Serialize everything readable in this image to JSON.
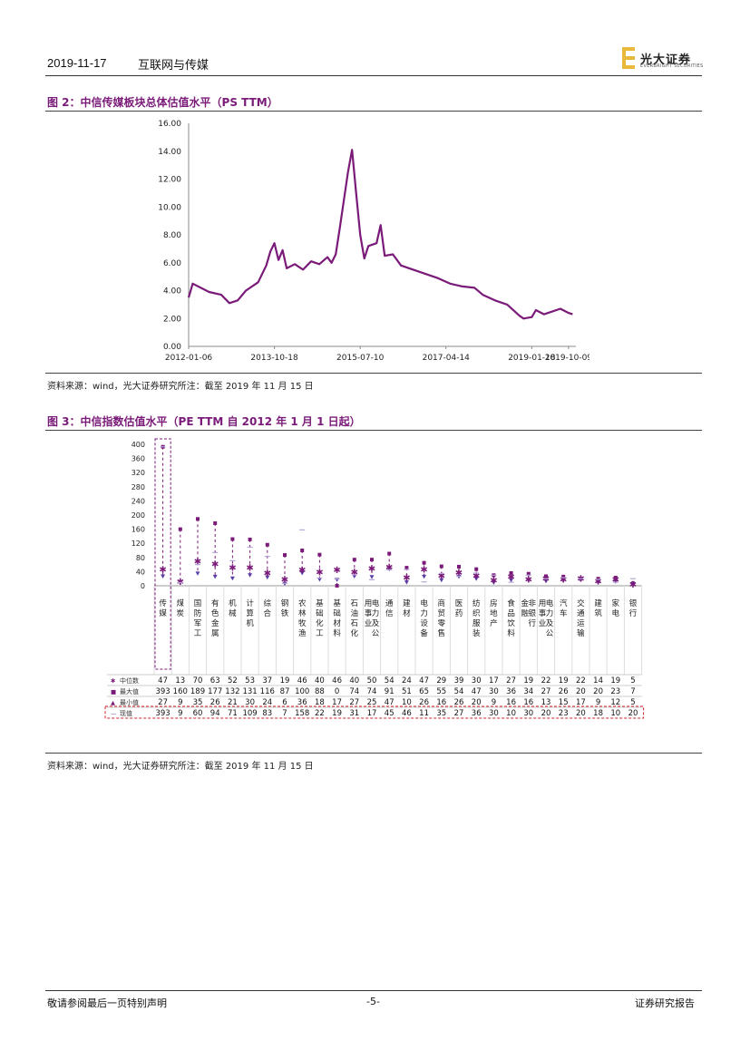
{
  "header": {
    "date": "2019-11-17",
    "category": "互联网与传媒",
    "brand": "光大证券",
    "brand_en": "EVERBRIGHT SECURITIES"
  },
  "figure2": {
    "title": "图 2：中信传媒板块总体估值水平（PS TTM）",
    "source": "资料来源：wind，光大证券研究所注：截至 2019 年 11 月 15 日",
    "chart_data": {
      "type": "line",
      "color": "#7a1a79",
      "ylim": [
        0,
        16
      ],
      "yticks": [
        "0.00",
        "2.00",
        "4.00",
        "6.00",
        "8.00",
        "10.00",
        "12.00",
        "14.00",
        "16.00"
      ],
      "xticks": [
        "2012-01-06",
        "2013-10-18",
        "2015-07-10",
        "2017-04-14",
        "2019-01-18",
        "2019-10-09"
      ],
      "x": [
        "2012-01",
        "2012-02",
        "2012-06",
        "2012-09",
        "2012-11",
        "2013-01",
        "2013-03",
        "2013-06",
        "2013-08",
        "2013-09",
        "2013-10",
        "2013-11",
        "2013-12",
        "2014-01",
        "2014-03",
        "2014-05",
        "2014-07",
        "2014-09",
        "2014-11",
        "2014-12",
        "2015-01",
        "2015-02",
        "2015-03",
        "2015-04",
        "2015-05",
        "2015-06",
        "2015-07",
        "2015-08",
        "2015-09",
        "2015-11",
        "2015-12",
        "2016-01",
        "2016-03",
        "2016-05",
        "2016-08",
        "2016-11",
        "2017-02",
        "2017-05",
        "2017-08",
        "2017-11",
        "2018-01",
        "2018-04",
        "2018-07",
        "2018-10",
        "2018-11",
        "2019-01",
        "2019-02",
        "2019-04",
        "2019-06",
        "2019-08",
        "2019-10",
        "2019-11"
      ],
      "series": [
        {
          "values": [
            3.5,
            4.5,
            3.9,
            3.7,
            3.1,
            3.3,
            4.0,
            4.6,
            5.8,
            6.8,
            7.4,
            6.2,
            6.9,
            5.6,
            5.9,
            5.5,
            6.1,
            5.9,
            6.4,
            6.0,
            6.6,
            8.5,
            10.5,
            12.5,
            14.1,
            11.0,
            8.0,
            6.3,
            7.2,
            7.4,
            8.7,
            6.5,
            6.6,
            5.8,
            5.5,
            5.2,
            4.9,
            4.5,
            4.3,
            4.2,
            3.7,
            3.3,
            3.0,
            2.2,
            2.0,
            2.1,
            2.6,
            2.3,
            2.5,
            2.7,
            2.4,
            2.3
          ]
        }
      ]
    }
  },
  "figure3": {
    "title": "图 3：中信指数估值水平（PE TTM 自 2012 年 1 月 1 日起）",
    "source": "资料来源：wind，光大证券研究所注：截至 2019 年 11 月 15 日",
    "chart_data": {
      "type": "scatter",
      "ylim": [
        0,
        400
      ],
      "yticks": [
        "0",
        "40",
        "80",
        "120",
        "160",
        "200",
        "240",
        "280",
        "320",
        "360",
        "400"
      ],
      "categories": [
        "传媒",
        "煤炭",
        "国防军工",
        "有色金属",
        "机械",
        "计算机",
        "综合",
        "钢铁",
        "农林牧渔",
        "基础化工",
        "基础材料",
        "石油石化",
        "电力及公用事业",
        "通信",
        "建材",
        "电力设备",
        "商贸零售",
        "医药",
        "纺织服装",
        "房地产",
        "食品饮料",
        "非银行金融",
        "电力及公用事业",
        "汽车",
        "交通运输",
        "建筑",
        "家电",
        "银行"
      ],
      "series": [
        {
          "name": "中位数",
          "color": "#7a1a79",
          "values": [
            47,
            13,
            70,
            63,
            52,
            53,
            37,
            19,
            46,
            40,
            46,
            40,
            50,
            54,
            24,
            47,
            29,
            39,
            30,
            17,
            27,
            19,
            22,
            19,
            22,
            14,
            19,
            5
          ]
        },
        {
          "name": "最大值",
          "color": "#7a1a79",
          "values": [
            393,
            160,
            189,
            177,
            132,
            131,
            116,
            87,
            100,
            88,
            0,
            74,
            74,
            91,
            51,
            65,
            55,
            54,
            47,
            30,
            36,
            34,
            27,
            26,
            20,
            20,
            23,
            7
          ]
        },
        {
          "name": "最小值",
          "color": "#7a1a79",
          "values": [
            27,
            9,
            35,
            26,
            21,
            30,
            24,
            6,
            36,
            18,
            17,
            27,
            25,
            47,
            10,
            26,
            16,
            26,
            20,
            9,
            16,
            16,
            13,
            15,
            17,
            9,
            12,
            5
          ]
        },
        {
          "name": "现值",
          "color": "#5b3fa8",
          "values": [
            393,
            9,
            60,
            94,
            71,
            109,
            83,
            7,
            158,
            22,
            19,
            31,
            17,
            45,
            46,
            11,
            35,
            27,
            36,
            30,
            10,
            30,
            20,
            23,
            20,
            18,
            10,
            20
          ]
        }
      ]
    }
  },
  "footer": {
    "left": "敬请参阅最后一页特别声明",
    "center": "-5-",
    "right": "证券研究报告"
  }
}
